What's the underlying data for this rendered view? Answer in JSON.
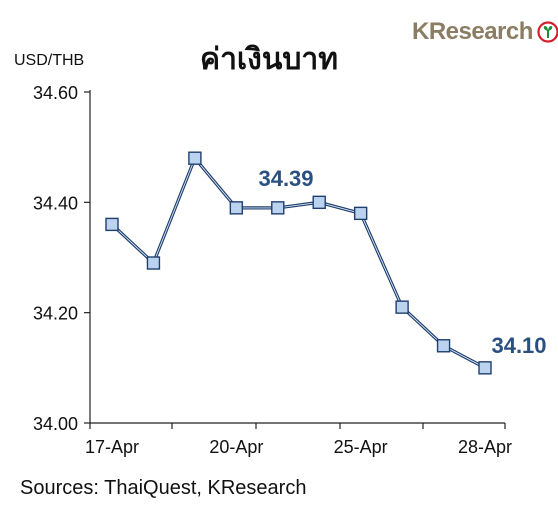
{
  "header": {
    "title": "ค่าเงินบาท",
    "unit_label": "USD/THB",
    "logo_text": "KResearch"
  },
  "footer": {
    "source": "Sources: ThaiQuest, KResearch"
  },
  "colors": {
    "line": "#1f3f6e",
    "marker_fill": "#bcd3ef",
    "marker_stroke": "#1f3f6e",
    "label": "#2a5082",
    "logo": "#8a7d64",
    "logo_mark_red": "#d21f2b",
    "logo_mark_green": "#1d8f3a"
  },
  "chart_data": {
    "type": "line",
    "title": "ค่าเงินบาท",
    "ylabel": "USD/THB",
    "xlabel": "",
    "ylim": [
      34.0,
      34.6
    ],
    "yticks": [
      "34.00",
      "34.20",
      "34.40",
      "34.60"
    ],
    "xticks": [
      "17-Apr",
      "20-Apr",
      "25-Apr",
      "28-Apr"
    ],
    "grid": false,
    "series": [
      {
        "values": [
          34.36,
          34.29,
          34.48,
          34.39,
          34.39,
          34.4,
          34.38,
          34.21,
          34.14,
          34.1
        ]
      }
    ],
    "annotations": [
      "34.39",
      "34.10"
    ]
  }
}
